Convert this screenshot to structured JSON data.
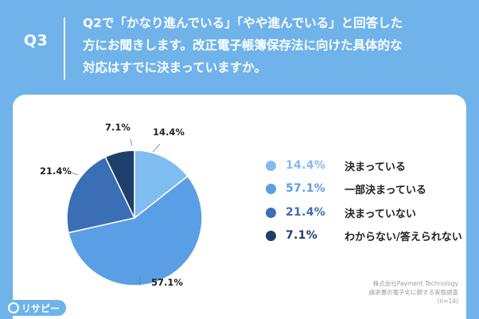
{
  "header": {
    "q_label": "Q3",
    "question_lines": [
      "Q2で「かなり進んでいる」「やや進んでいる」と回答した",
      "方にお聞きします。改正電子帳簿保存法に向けた具体的な",
      "対応はすでに決まっていますか。"
    ]
  },
  "chart_data": {
    "type": "pie",
    "categories": [
      "決まっている",
      "一部決まっている",
      "決まっていない",
      "わからない/答えられない"
    ],
    "values": [
      14.4,
      57.1,
      21.4,
      7.1
    ],
    "value_labels": [
      "14.4%",
      "57.1%",
      "21.4%",
      "7.1%"
    ],
    "colors": [
      "#7fbcf0",
      "#5a9ee6",
      "#3a6fb5",
      "#1f3f6b"
    ],
    "legend_placement": "right"
  },
  "source": {
    "line1": "株式会社Payment Technology",
    "line2": "請求書の電子化に関する実態調査",
    "line3": "(n=14)"
  },
  "logo": {
    "text": "リサピー",
    "icon": "search-icon"
  }
}
